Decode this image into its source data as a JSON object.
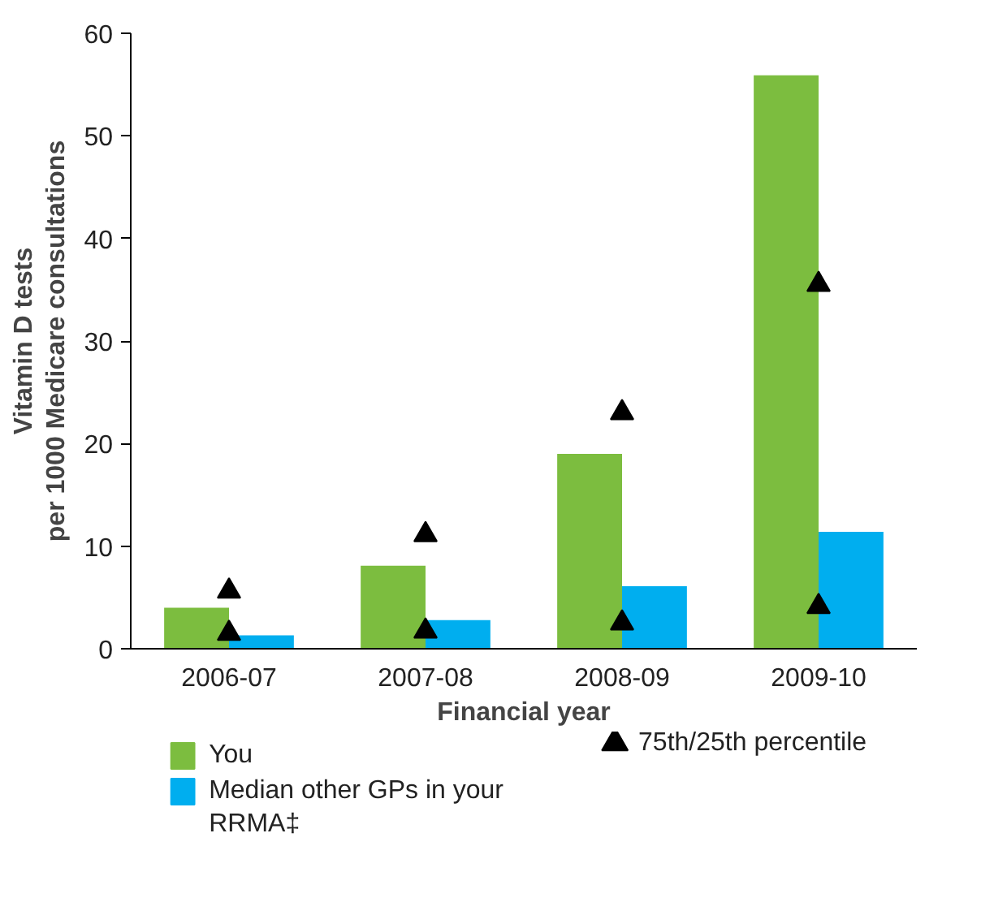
{
  "chart_data": {
    "type": "bar",
    "xlabel": "Financial year",
    "ylabel": "Vitamin D tests\nper 1000 Medicare consultations",
    "categories": [
      "2006-07",
      "2007-08",
      "2008-09",
      "2009-10"
    ],
    "series": [
      {
        "name": "You",
        "color": "#7cbd3f",
        "values": [
          4,
          8.1,
          19,
          55.9
        ]
      },
      {
        "name": "Median other GPs in your RRMA‡",
        "color": "#00aeef",
        "values": [
          1.3,
          2.8,
          6.1,
          11.4
        ]
      },
      {
        "name": "75th/25th percentile",
        "type": "scatter",
        "marker": "triangle",
        "color": "#000000",
        "values": [
          5.6,
          11.1,
          23,
          35.5
        ]
      },
      {
        "type": "scatter",
        "marker": "triangle",
        "color": "#000000",
        "values": [
          1.5,
          1.7,
          2.5,
          4.1
        ]
      }
    ],
    "ylim": [
      0,
      60
    ],
    "yticks": [
      0,
      10,
      20,
      30,
      40,
      50,
      60
    ],
    "grid": false,
    "legend": "bottom"
  }
}
